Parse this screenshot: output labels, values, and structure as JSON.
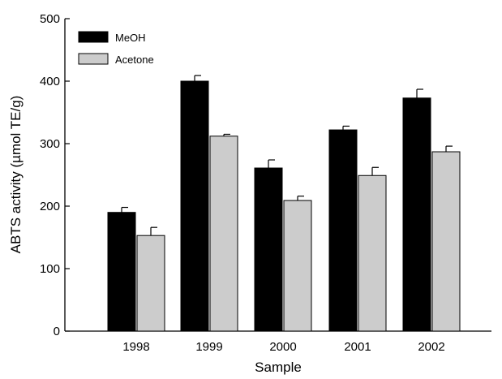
{
  "chart_data": {
    "type": "bar",
    "xlabel": "Sample",
    "ylabel": "ABTS activity (µmol TE/g)",
    "categories": [
      "1998",
      "1999",
      "2000",
      "2001",
      "2002"
    ],
    "ylim": [
      0,
      500
    ],
    "yticks": [
      0,
      100,
      200,
      300,
      400,
      500
    ],
    "grid": false,
    "legend_position": "top-left",
    "series": [
      {
        "name": "MeOH",
        "color": "#000000",
        "values": [
          190,
          400,
          261,
          322,
          373
        ],
        "errors": [
          8,
          9,
          13,
          6,
          14
        ]
      },
      {
        "name": "Acetone",
        "color": "#cccccc",
        "values": [
          153,
          312,
          209,
          249,
          287
        ],
        "errors": [
          13,
          3,
          7,
          13,
          9
        ]
      }
    ]
  }
}
